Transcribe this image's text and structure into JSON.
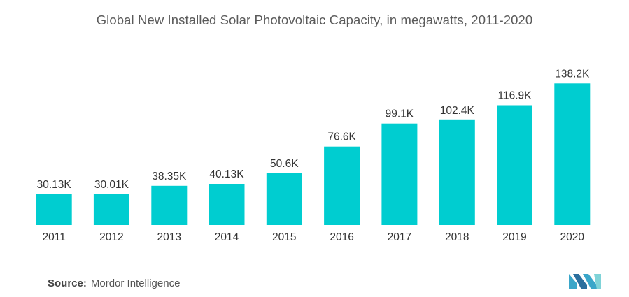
{
  "chart_data": {
    "type": "bar",
    "title": "Global New Installed Solar Photovoltaic Capacity, in megawatts, 2011-2020",
    "xlabel": "",
    "ylabel": "",
    "categories": [
      "2011",
      "2012",
      "2013",
      "2014",
      "2015",
      "2016",
      "2017",
      "2018",
      "2019",
      "2020"
    ],
    "values": [
      30130,
      30010,
      38350,
      40130,
      50600,
      76600,
      99100,
      102400,
      116900,
      138200
    ],
    "data_labels": [
      "30.13K",
      "30.01K",
      "38.35K",
      "40.13K",
      "50.6K",
      "76.6K",
      "99.1K",
      "102.4K",
      "116.9K",
      "138.2K"
    ],
    "ylim": [
      0,
      150000
    ],
    "grid": false,
    "legend": "none",
    "bar_color": "#00cdd0"
  },
  "source": {
    "label": "Source:",
    "text": "Mordor Intelligence"
  },
  "logo": {
    "icon": "mordor-intelligence-logo",
    "colors": [
      "#3aa6c9",
      "#2b6f9e",
      "#7fd3d8"
    ]
  }
}
